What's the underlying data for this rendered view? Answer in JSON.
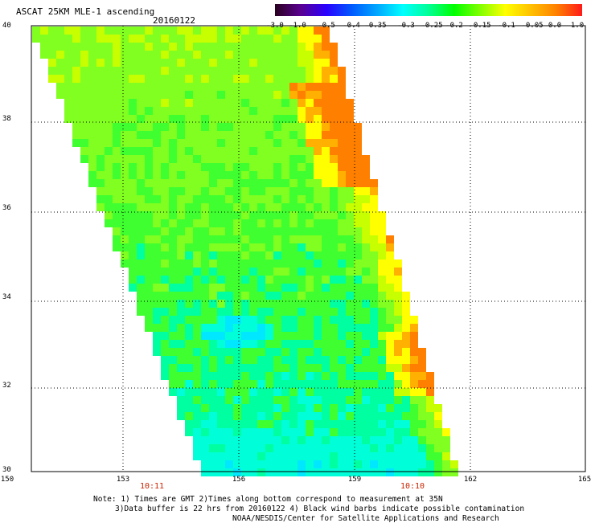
{
  "title": "ASCAT 25KM MLE-1 ascending",
  "date": "20160122",
  "colorbar": {
    "labels": [
      "-3.0",
      "-1.0",
      "-0.5",
      "-0.4",
      "-0.35",
      "-0.3",
      "-0.25",
      "-0.2",
      "-0.15",
      "-0.1",
      "-0.05",
      "0.0",
      "1.0"
    ],
    "colors": [
      "#2a001f",
      "#5a0090",
      "#2a00ff",
      "#005aff",
      "#00a8ff",
      "#00ffff",
      "#00ff96",
      "#00ff00",
      "#80ff00",
      "#ffff00",
      "#ffc000",
      "#ff8000",
      "#ff1a1a"
    ]
  },
  "axes": {
    "lat_labels": [
      "40",
      "38",
      "36",
      "34",
      "32",
      "30"
    ],
    "lon_labels": [
      "150",
      "153",
      "156",
      "159",
      "162",
      "165"
    ]
  },
  "times": {
    "left": "10:11",
    "right": "10:10"
  },
  "notes": {
    "line1": "Note: 1) Times are GMT 2)Times along bottom correspond to measurement at 35N",
    "line2": "3)Data buffer is 22 hrs from 20160122 4) Black wind barbs indicate possible contamination",
    "line3": "NOAA/NESDIS/Center for Satellite Applications and Research"
  }
}
